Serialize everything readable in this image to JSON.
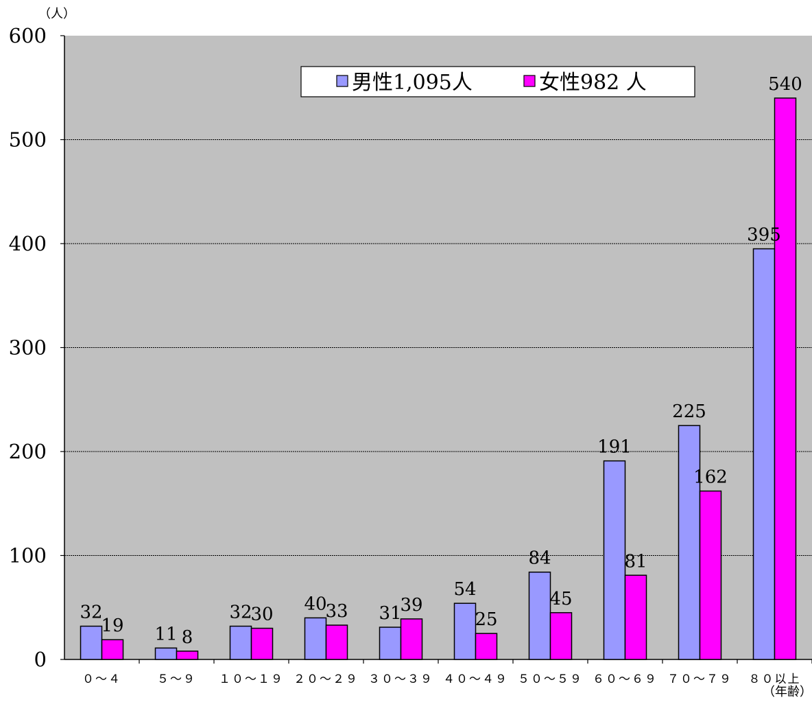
{
  "chart_data": {
    "type": "bar",
    "y_unit": "（人）",
    "x_unit": "（年齢）",
    "categories": [
      "０～４",
      "５～９",
      "１０～１９",
      "２０～２９",
      "３０～３９",
      "４０～４９",
      "５０～５９",
      "６０～６９",
      "７０～７９",
      "８０以上"
    ],
    "series": [
      {
        "name": "男性1,095人",
        "color": "#9999ff",
        "values": [
          32,
          11,
          32,
          40,
          31,
          54,
          84,
          191,
          225,
          395
        ]
      },
      {
        "name": "女性982 人",
        "color": "#ff00ff",
        "values": [
          19,
          8,
          30,
          33,
          39,
          25,
          45,
          81,
          162,
          540
        ]
      }
    ],
    "ylim": [
      0,
      600
    ],
    "yticks": [
      0,
      100,
      200,
      300,
      400,
      500,
      600
    ],
    "grid": true,
    "legend_position": "top-right",
    "plot_background": "#c0c0c0"
  }
}
